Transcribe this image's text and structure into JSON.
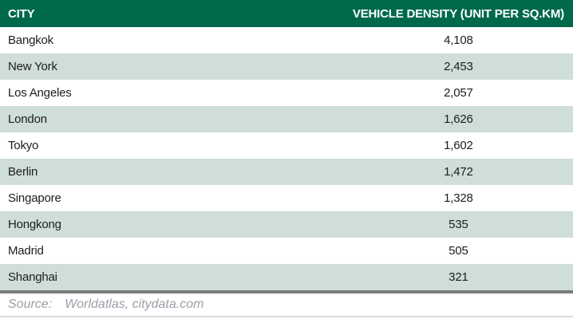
{
  "table": {
    "columns": [
      {
        "label": "CITY"
      },
      {
        "label": "VEHICLE DENSITY (UNIT PER SQ.KM)"
      }
    ],
    "rows": [
      {
        "city": "Bangkok",
        "density": "4,108"
      },
      {
        "city": "New York",
        "density": "2,453"
      },
      {
        "city": "Los Angeles",
        "density": "2,057"
      },
      {
        "city": "London",
        "density": "1,626"
      },
      {
        "city": "Tokyo",
        "density": "1,602"
      },
      {
        "city": "Berlin",
        "density": "1,472"
      },
      {
        "city": "Singapore",
        "density": "1,328"
      },
      {
        "city": "Hongkong",
        "density": "535"
      },
      {
        "city": "Madrid",
        "density": "505"
      },
      {
        "city": "Shanghai",
        "density": "321"
      }
    ]
  },
  "source": {
    "label": "Source:",
    "text": "Worldatlas, citydata.com"
  },
  "colors": {
    "header_bg": "#00694C",
    "header_fg": "#FFFFFF",
    "alt_row_bg": "#CFDED7",
    "cell_fg": "#1D1D1F",
    "separator": "#7B7B7B",
    "source_fg": "#98A0A8",
    "bottom_strip": "#D6E0DB"
  },
  "chart_data": {
    "type": "table",
    "title": "",
    "columns": [
      "CITY",
      "VEHICLE DENSITY (UNIT PER SQ.KM)"
    ],
    "categories": [
      "Bangkok",
      "New York",
      "Los Angeles",
      "London",
      "Tokyo",
      "Berlin",
      "Singapore",
      "Hongkong",
      "Madrid",
      "Shanghai"
    ],
    "values": [
      4108,
      2453,
      2057,
      1626,
      1602,
      1472,
      1328,
      535,
      505,
      321
    ],
    "source": "Worldatlas, citydata.com",
    "layout": {
      "alternating_rows": true,
      "value_alignment": "center",
      "grid": false
    }
  }
}
